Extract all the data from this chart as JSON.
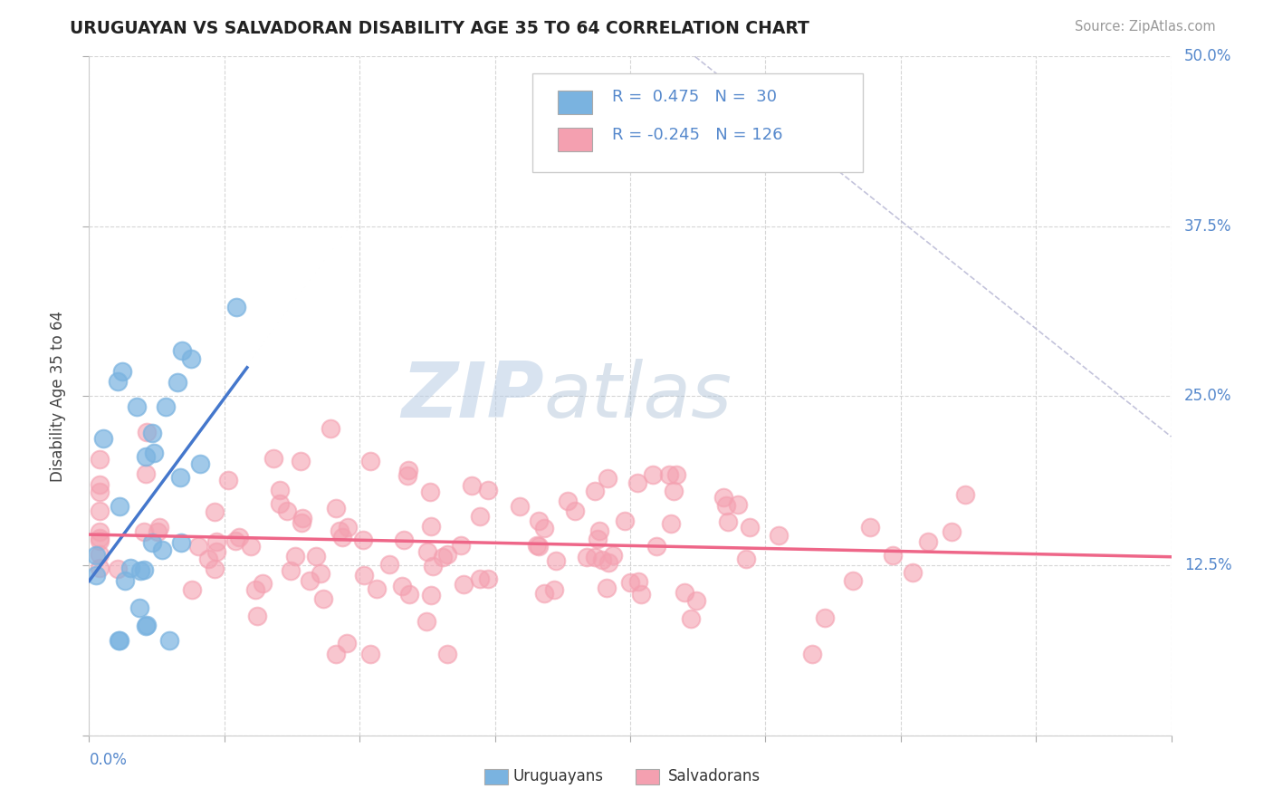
{
  "title": "URUGUAYAN VS SALVADORAN DISABILITY AGE 35 TO 64 CORRELATION CHART",
  "source_text": "Source: ZipAtlas.com",
  "ylabel": "Disability Age 35 to 64",
  "xlim": [
    0.0,
    0.5
  ],
  "ylim": [
    0.0,
    0.5
  ],
  "ytick_labels": [
    "12.5%",
    "25.0%",
    "37.5%",
    "50.0%"
  ],
  "ytick_values": [
    0.125,
    0.25,
    0.375,
    0.5
  ],
  "grid_color": "#cccccc",
  "background_color": "#ffffff",
  "uruguayan_color": "#7ab3e0",
  "salvadoran_color": "#f4a0b0",
  "trend_uruguayan_color": "#4477cc",
  "trend_salvadoran_color": "#ee6688",
  "r_uruguayan": 0.475,
  "n_uruguayan": 30,
  "r_salvadoran": -0.245,
  "n_salvadoran": 126,
  "watermark_zip": "ZIP",
  "watermark_atlas": "atlas",
  "legend_label_uru": "Uruguayans",
  "legend_label_sal": "Salvadorans"
}
